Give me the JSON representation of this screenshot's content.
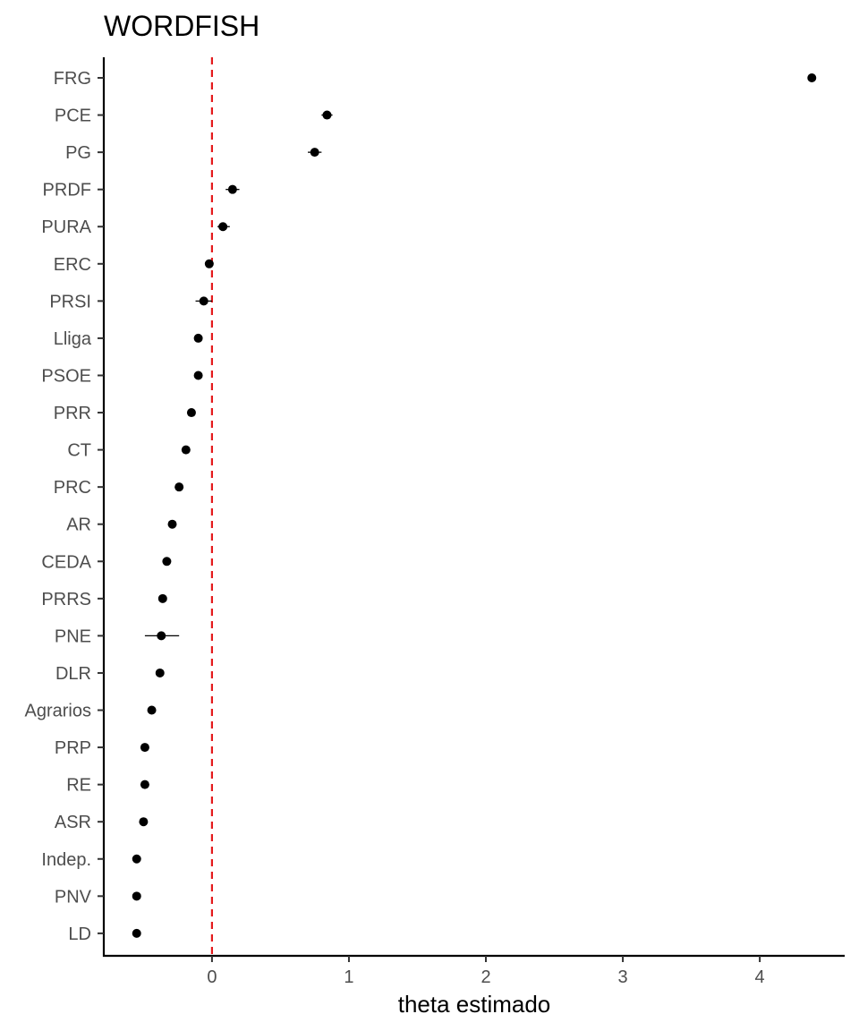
{
  "chart_data": {
    "type": "scatter",
    "title": "WORDFISH",
    "xlabel": "theta estimado",
    "ylabel": "",
    "xlim": [
      -0.79,
      4.62
    ],
    "xticks": [
      0,
      1,
      2,
      3,
      4
    ],
    "reference_line": {
      "x": 0,
      "color": "#e41a1c",
      "style": "dashed"
    },
    "grid": false,
    "points": [
      {
        "label": "FRG",
        "theta": 4.38,
        "lo": 4.36,
        "hi": 4.4
      },
      {
        "label": "PCE",
        "theta": 0.84,
        "lo": 0.8,
        "hi": 0.88
      },
      {
        "label": "PG",
        "theta": 0.75,
        "lo": 0.7,
        "hi": 0.8
      },
      {
        "label": "PRDF",
        "theta": 0.15,
        "lo": 0.1,
        "hi": 0.2
      },
      {
        "label": "PURA",
        "theta": 0.08,
        "lo": 0.04,
        "hi": 0.13
      },
      {
        "label": "ERC",
        "theta": -0.02,
        "lo": -0.04,
        "hi": 0.0
      },
      {
        "label": "PRSI",
        "theta": -0.06,
        "lo": -0.12,
        "hi": 0.0
      },
      {
        "label": "Lliga",
        "theta": -0.1,
        "lo": -0.12,
        "hi": -0.08
      },
      {
        "label": "PSOE",
        "theta": -0.1,
        "lo": -0.12,
        "hi": -0.08
      },
      {
        "label": "PRR",
        "theta": -0.15,
        "lo": -0.17,
        "hi": -0.13
      },
      {
        "label": "CT",
        "theta": -0.19,
        "lo": -0.21,
        "hi": -0.17
      },
      {
        "label": "PRC",
        "theta": -0.24,
        "lo": -0.26,
        "hi": -0.22
      },
      {
        "label": "AR",
        "theta": -0.29,
        "lo": -0.31,
        "hi": -0.27
      },
      {
        "label": "CEDA",
        "theta": -0.33,
        "lo": -0.35,
        "hi": -0.31
      },
      {
        "label": "PRRS",
        "theta": -0.36,
        "lo": -0.38,
        "hi": -0.34
      },
      {
        "label": "PNE",
        "theta": -0.37,
        "lo": -0.49,
        "hi": -0.24
      },
      {
        "label": "DLR",
        "theta": -0.38,
        "lo": -0.4,
        "hi": -0.36
      },
      {
        "label": "Agrarios",
        "theta": -0.44,
        "lo": -0.46,
        "hi": -0.42
      },
      {
        "label": "PRP",
        "theta": -0.49,
        "lo": -0.51,
        "hi": -0.47
      },
      {
        "label": "RE",
        "theta": -0.49,
        "lo": -0.51,
        "hi": -0.47
      },
      {
        "label": "ASR",
        "theta": -0.5,
        "lo": -0.52,
        "hi": -0.48
      },
      {
        "label": "Indep.",
        "theta": -0.55,
        "lo": -0.57,
        "hi": -0.53
      },
      {
        "label": "PNV",
        "theta": -0.55,
        "lo": -0.57,
        "hi": -0.53
      },
      {
        "label": "LD",
        "theta": -0.55,
        "lo": -0.57,
        "hi": -0.53
      }
    ]
  }
}
